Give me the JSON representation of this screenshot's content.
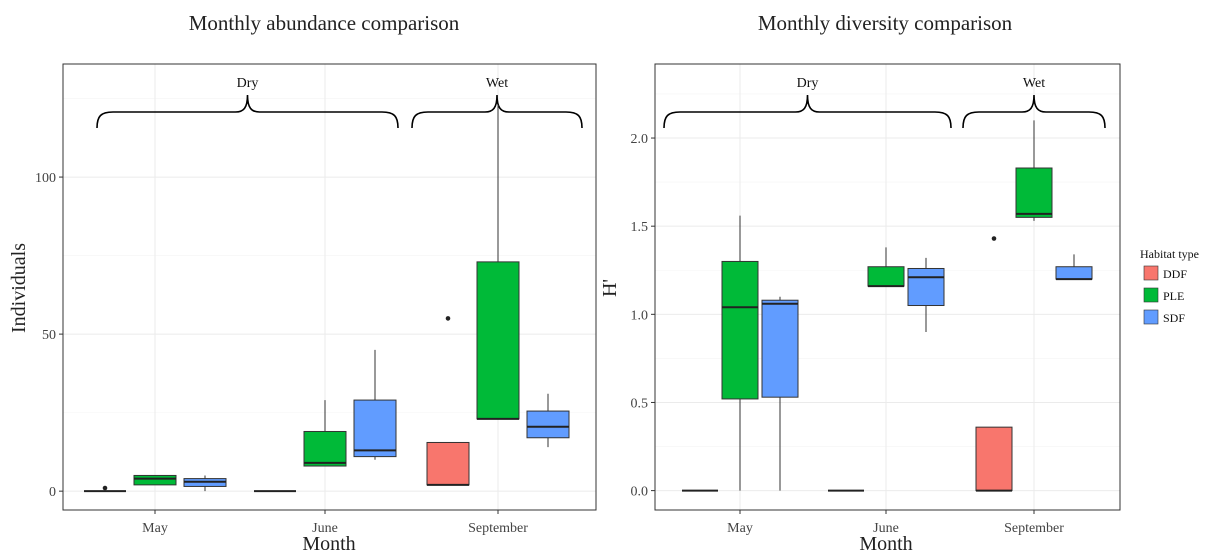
{
  "legend": {
    "title": "Habitat type",
    "items": [
      {
        "label": "DDF",
        "color": "#F8766D"
      },
      {
        "label": "PLE",
        "color": "#00BA38"
      },
      {
        "label": "SDF",
        "color": "#619CFF"
      }
    ]
  },
  "chart_data": [
    {
      "type": "box",
      "title": "Monthly abundance comparison",
      "xlabel": "Month",
      "ylabel": "Individuals",
      "categories": [
        "May",
        "June",
        "September"
      ],
      "ylim": [
        -6,
        136
      ],
      "yticks": [
        0,
        50,
        100
      ],
      "grid": true,
      "groups": [
        {
          "label": "Dry",
          "categories": [
            "May",
            "June"
          ]
        },
        {
          "label": "Wet",
          "categories": [
            "September"
          ]
        }
      ],
      "series": [
        {
          "name": "DDF",
          "color": "#F8766D",
          "boxes": [
            {
              "category": "May",
              "min": 0,
              "q1": 0,
              "median": 0,
              "q3": 0,
              "max": 0,
              "outliers": [
                1
              ]
            },
            {
              "category": "June",
              "min": 0,
              "q1": 0,
              "median": 0,
              "q3": 0,
              "max": 0,
              "outliers": []
            },
            {
              "category": "September",
              "min": 2,
              "q1": 2,
              "median": 2,
              "q3": 15.5,
              "max": 15.5,
              "outliers": [
                55
              ]
            }
          ]
        },
        {
          "name": "PLE",
          "color": "#00BA38",
          "boxes": [
            {
              "category": "May",
              "min": 2,
              "q1": 2,
              "median": 4,
              "q3": 5,
              "max": 5,
              "outliers": []
            },
            {
              "category": "June",
              "min": 8,
              "q1": 8,
              "median": 9,
              "q3": 19,
              "max": 29,
              "outliers": []
            },
            {
              "category": "September",
              "min": 23,
              "q1": 23,
              "median": 23,
              "q3": 73,
              "max": 123,
              "outliers": []
            }
          ]
        },
        {
          "name": "SDF",
          "color": "#619CFF",
          "boxes": [
            {
              "category": "May",
              "min": 0,
              "q1": 1.5,
              "median": 3,
              "q3": 4,
              "max": 5,
              "outliers": []
            },
            {
              "category": "June",
              "min": 10,
              "q1": 11,
              "median": 13,
              "q3": 29,
              "max": 45,
              "outliers": []
            },
            {
              "category": "September",
              "min": 14,
              "q1": 17,
              "median": 20.5,
              "q3": 25.5,
              "max": 31,
              "outliers": []
            }
          ]
        }
      ]
    },
    {
      "type": "box",
      "title": "Monthly diversity comparison",
      "xlabel": "Month",
      "ylabel": "H'",
      "categories": [
        "May",
        "June",
        "September"
      ],
      "ylim": [
        -0.11,
        2.42
      ],
      "yticks": [
        0.0,
        0.5,
        1.0,
        1.5,
        2.0
      ],
      "ytick_labels": [
        "0.0",
        "0.5",
        "1.0",
        "1.5",
        "2.0"
      ],
      "grid": true,
      "groups": [
        {
          "label": "Dry",
          "categories": [
            "May",
            "June"
          ]
        },
        {
          "label": "Wet",
          "categories": [
            "September"
          ]
        }
      ],
      "series": [
        {
          "name": "DDF",
          "color": "#F8766D",
          "boxes": [
            {
              "category": "May",
              "min": 0,
              "q1": 0,
              "median": 0,
              "q3": 0,
              "max": 0,
              "outliers": []
            },
            {
              "category": "June",
              "min": 0,
              "q1": 0,
              "median": 0,
              "q3": 0,
              "max": 0,
              "outliers": []
            },
            {
              "category": "September",
              "min": 0,
              "q1": 0,
              "median": 0,
              "q3": 0.36,
              "max": 0.36,
              "outliers": [
                1.43
              ]
            }
          ]
        },
        {
          "name": "PLE",
          "color": "#00BA38",
          "boxes": [
            {
              "category": "May",
              "min": 0,
              "q1": 0.52,
              "median": 1.04,
              "q3": 1.3,
              "max": 1.56,
              "outliers": []
            },
            {
              "category": "June",
              "min": 1.16,
              "q1": 1.16,
              "median": 1.16,
              "q3": 1.27,
              "max": 1.38,
              "outliers": []
            },
            {
              "category": "September",
              "min": 1.53,
              "q1": 1.55,
              "median": 1.57,
              "q3": 1.83,
              "max": 2.1,
              "outliers": []
            }
          ]
        },
        {
          "name": "SDF",
          "color": "#619CFF",
          "boxes": [
            {
              "category": "May",
              "min": 0,
              "q1": 0.53,
              "median": 1.06,
              "q3": 1.08,
              "max": 1.1,
              "outliers": []
            },
            {
              "category": "June",
              "min": 0.9,
              "q1": 1.05,
              "median": 1.21,
              "q3": 1.26,
              "max": 1.32,
              "outliers": []
            },
            {
              "category": "September",
              "min": 1.2,
              "q1": 1.2,
              "median": 1.2,
              "q3": 1.27,
              "max": 1.34,
              "outliers": []
            }
          ]
        }
      ]
    }
  ]
}
